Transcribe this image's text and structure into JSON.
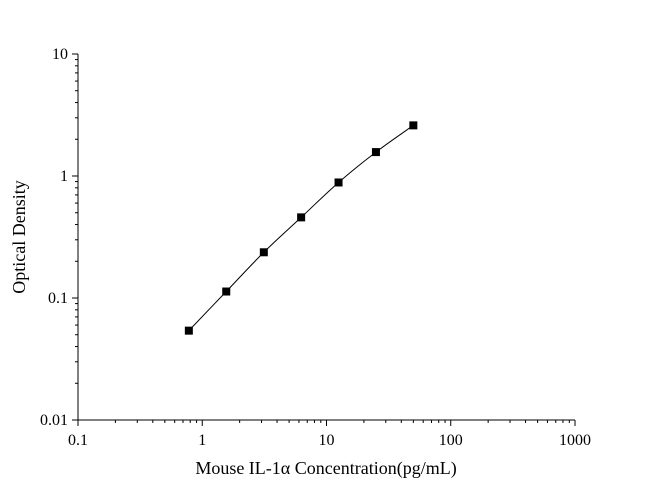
{
  "chart_data": {
    "type": "scatter",
    "title": "",
    "xlabel": "Mouse IL-1α Concentration(pg/mL)",
    "ylabel": "Optical Density",
    "xscale": "log",
    "yscale": "log",
    "xlim": [
      0.1,
      1000
    ],
    "ylim": [
      0.01,
      10
    ],
    "x_ticks": [
      "0.1",
      "1",
      "10",
      "100",
      "1000"
    ],
    "y_ticks": [
      "0.01",
      "0.1",
      "1",
      "10"
    ],
    "grid": false,
    "legend": "none",
    "fit_line": true,
    "series": [
      {
        "x": [
          0.78,
          1.56,
          3.13,
          6.25,
          12.5,
          25,
          50
        ],
        "y": [
          0.054,
          0.113,
          0.237,
          0.458,
          0.885,
          1.57,
          2.6
        ]
      }
    ]
  }
}
